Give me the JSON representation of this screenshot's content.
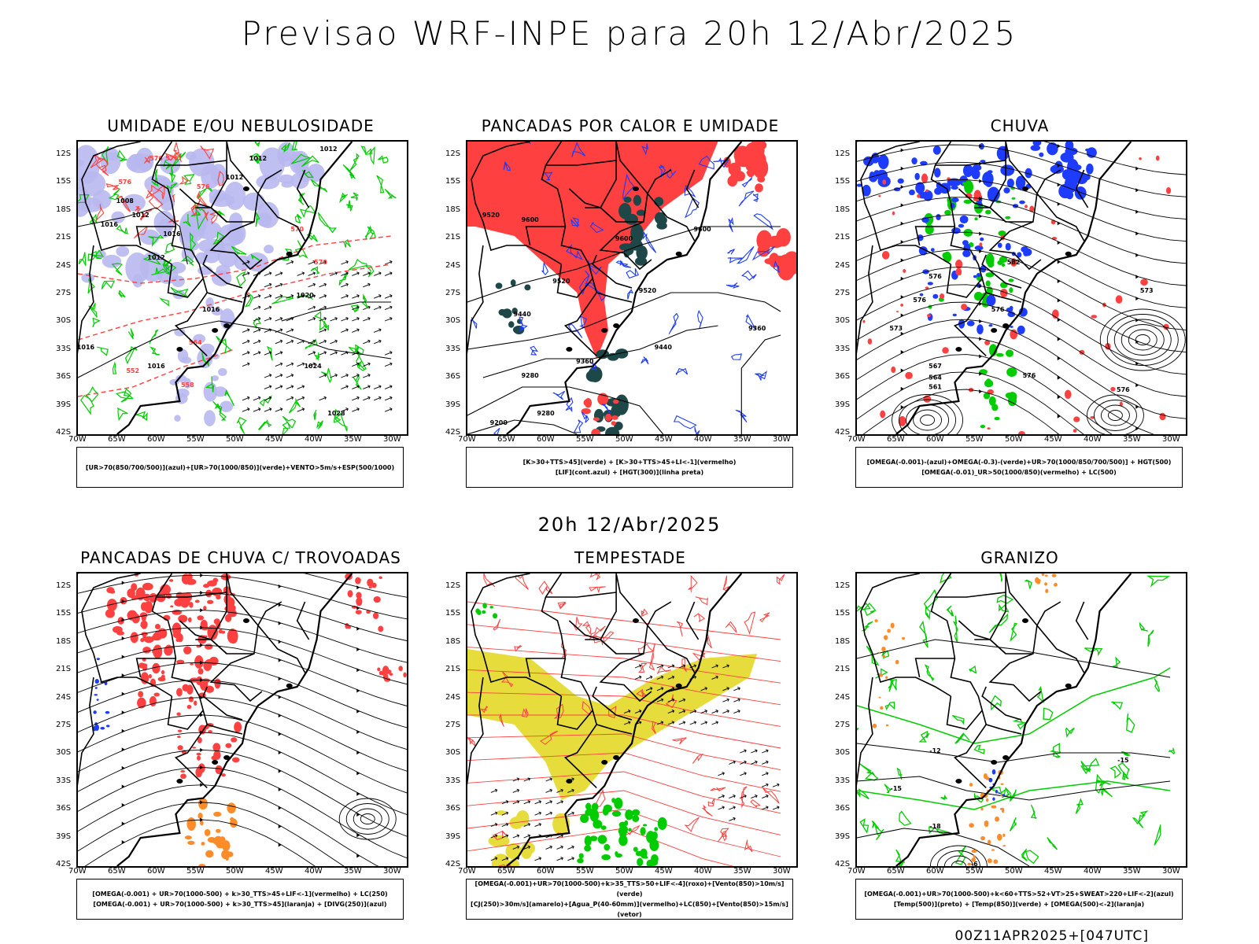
{
  "title": "Previsao WRF-INPE  para 20h 12/Abr/2025",
  "mid_title": "20h 12/Abr/2025",
  "footer": "00Z11APR2025+[047UTC]",
  "lat_labels": [
    "12S",
    "15S",
    "18S",
    "21S",
    "24S",
    "27S",
    "30S",
    "33S",
    "36S",
    "39S",
    "42S"
  ],
  "lon_labels": [
    "70W",
    "65W",
    "60W",
    "55W",
    "50W",
    "45W",
    "40W",
    "35W",
    "30W"
  ],
  "panels": [
    {
      "title": "UMIDADE E/OU NEBULOSIDADE",
      "legend": [
        "[UR>70(850/700/500)](azul)+[UR>70(1000/850)](verde)+VENTO>5m/s+ESP(500/1000)"
      ],
      "contour_labels": [
        "1012",
        "1012",
        "1012",
        "1012",
        "1008",
        "1016",
        "1012",
        "1016",
        "1016",
        "1020",
        "1024",
        "1016",
        "1016",
        "1028",
        "576",
        "570",
        "576",
        "576",
        "576",
        "570",
        "564",
        "552",
        "558"
      ]
    },
    {
      "title": "PANCADAS POR CALOR E UMIDADE",
      "legend": [
        "[K>30+TTS>45](verde) + [K>30+TTS>45+LI<-1](vermelho)",
        "[LIF](cont.azul) + [HGT(300)](linha preta)"
      ],
      "contour_labels": [
        "9520",
        "9600",
        "9600",
        "9600",
        "9520",
        "9440",
        "9520",
        "9360",
        "9440",
        "9280",
        "9360",
        "9200",
        "9280"
      ]
    },
    {
      "title": "CHUVA",
      "legend": [
        "[OMEGA(-0.001)-(azul)+OMEGA(-0.3)-(verde)+UR>70(1000/850/700/500)] + HGT(500)",
        "[OMEGA(-0.01)_UR>50(1000/850)(vermelho) + LC(500)"
      ],
      "contour_labels": [
        "582",
        "576",
        "576",
        "573",
        "576",
        "573",
        "576",
        "567",
        "564",
        "561",
        "576"
      ]
    },
    {
      "title": "PANCADAS DE CHUVA C/ TROVOADAS",
      "legend": [
        "[OMEGA(-0.001) + UR>70(1000-500) + k>30_TTS>45+LIF<-1](vermelho) + LC(250)",
        "[OMEGA(-0.001) + UR>70(1000-500) + k>30_TTS>45](laranja) + [DIVG(250)](azul)"
      ],
      "contour_labels": []
    },
    {
      "title": "TEMPESTADE",
      "legend": [
        "[OMEGA(-0.001)+UR>70(1000-500)+k>35_TTS>50+LIF<-4](roxo)+[Vento(850)>10m/s](verde)",
        "[CJ(250)>30m/s](amarelo)+[Agua_P(40-60mm)](vermelho)+LC(850)+[Vento(850)>15m/s](vetor)"
      ],
      "contour_labels": []
    },
    {
      "title": "GRANIZO",
      "legend": [
        "[OMEGA(-0.001)+UR>70(1000-500)+k<60+TTS>52+VT>25+SWEAT>220+LIF<-2](azul)",
        "[Temp(500)](preto) + [Temp(850)](verde) + [OMEGA(500)<-2](laranja)"
      ],
      "contour_labels": [
        "-12",
        "-15",
        "-15",
        "-18",
        "-6"
      ]
    }
  ],
  "colors": {
    "blue_fill": "#b8b8f0",
    "green": "#00cc00",
    "red": "#ff4040",
    "dark_teal": "#1e4848",
    "yellow": "#e6dc3c",
    "orange": "#ff8c28",
    "blue": "#1e3cff"
  }
}
